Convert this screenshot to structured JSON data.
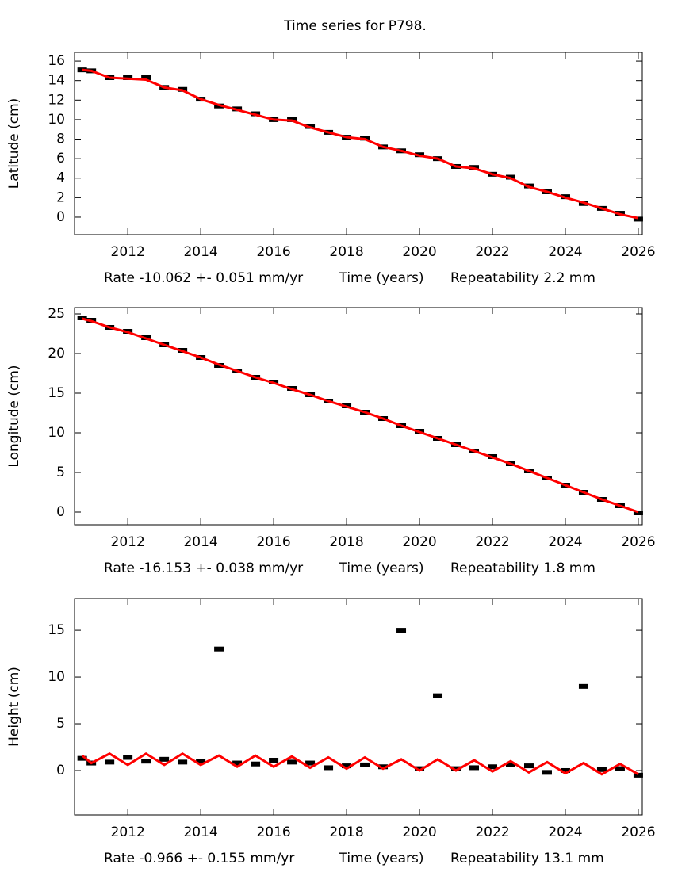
{
  "chart_data": [
    {
      "type": "scatter",
      "title": "Time series for P798.",
      "ylabel": "Latitude (cm)",
      "rate_label": "Rate -10.062 +- 0.051 mm/yr",
      "xlabel": "Time (years)",
      "repeatability_label": "Repeatability 2.2 mm",
      "x": [
        2010.75,
        2011.0,
        2011.5,
        2012.0,
        2012.5,
        2013.0,
        2013.5,
        2014.0,
        2014.5,
        2015.0,
        2015.5,
        2016.0,
        2016.5,
        2017.0,
        2017.5,
        2018.0,
        2018.5,
        2019.0,
        2019.5,
        2020.0,
        2020.5,
        2021.0,
        2021.5,
        2022.0,
        2022.5,
        2023.0,
        2023.5,
        2024.0,
        2024.5,
        2025.0,
        2025.5,
        2026.0
      ],
      "series": [
        {
          "color": "#000000",
          "values": [
            15.1,
            15.0,
            14.3,
            14.3,
            14.3,
            13.3,
            13.1,
            12.1,
            11.4,
            11.1,
            10.6,
            10.0,
            10.0,
            9.3,
            8.7,
            8.2,
            8.1,
            7.2,
            6.8,
            6.4,
            6.0,
            5.2,
            5.1,
            4.4,
            4.1,
            3.2,
            2.6,
            2.1,
            1.4,
            0.9,
            0.4,
            -0.2
          ]
        },
        {
          "color": "#ff0000",
          "values": [
            15.1,
            15.0,
            14.3,
            14.2,
            14.1,
            13.3,
            13.0,
            12.1,
            11.5,
            11.0,
            10.5,
            10.0,
            9.9,
            9.2,
            8.7,
            8.2,
            8.0,
            7.2,
            6.8,
            6.3,
            6.0,
            5.2,
            5.0,
            4.4,
            4.0,
            3.1,
            2.6,
            2.0,
            1.5,
            0.9,
            0.3,
            -0.1
          ]
        }
      ],
      "xlim": [
        2010.54,
        2026.11
      ],
      "xticks": [
        2012,
        2014,
        2016,
        2018,
        2020,
        2022,
        2024,
        2026
      ],
      "ylim": [
        -1.79,
        16.9
      ],
      "yticks": [
        0,
        2,
        4,
        6,
        8,
        10,
        12,
        14,
        16
      ]
    },
    {
      "type": "scatter",
      "ylabel": "Longitude (cm)",
      "rate_label": "Rate -16.153 +- 0.038 mm/yr",
      "xlabel": "Time (years)",
      "repeatability_label": "Repeatability 1.8 mm",
      "x": [
        2010.75,
        2011.0,
        2011.5,
        2012.0,
        2012.5,
        2013.0,
        2013.5,
        2014.0,
        2014.5,
        2015.0,
        2015.5,
        2016.0,
        2016.5,
        2017.0,
        2017.5,
        2018.0,
        2018.5,
        2019.0,
        2019.5,
        2020.0,
        2020.5,
        2021.0,
        2021.5,
        2022.0,
        2022.5,
        2023.0,
        2023.5,
        2024.0,
        2024.5,
        2025.0,
        2025.5,
        2026.0
      ],
      "series": [
        {
          "color": "#000000",
          "values": [
            24.5,
            24.2,
            23.3,
            22.8,
            22.0,
            21.1,
            20.4,
            19.5,
            18.5,
            17.8,
            17.0,
            16.4,
            15.6,
            14.8,
            14.0,
            13.4,
            12.6,
            11.8,
            10.9,
            10.2,
            9.3,
            8.5,
            7.7,
            7.0,
            6.1,
            5.2,
            4.3,
            3.4,
            2.5,
            1.6,
            0.8,
            -0.1
          ]
        },
        {
          "color": "#ff0000",
          "values": [
            24.4,
            24.1,
            23.3,
            22.7,
            21.9,
            21.1,
            20.3,
            19.5,
            18.6,
            17.8,
            17.0,
            16.3,
            15.5,
            14.8,
            14.0,
            13.3,
            12.6,
            11.8,
            10.9,
            10.1,
            9.3,
            8.5,
            7.7,
            6.9,
            6.1,
            5.2,
            4.3,
            3.4,
            2.5,
            1.6,
            0.8,
            0.0
          ]
        }
      ],
      "xlim": [
        2010.54,
        2026.11
      ],
      "xticks": [
        2012,
        2014,
        2016,
        2018,
        2020,
        2022,
        2024,
        2026
      ],
      "ylim": [
        -1.6,
        25.8
      ],
      "yticks": [
        0,
        5,
        10,
        15,
        20,
        25
      ]
    },
    {
      "type": "scatter",
      "ylabel": "Height (cm)",
      "rate_label": "Rate -0.966 +- 0.155 mm/yr",
      "xlabel": "Time (years)",
      "repeatability_label": "Repeatability 13.1 mm",
      "x": [
        2010.75,
        2011.0,
        2011.5,
        2012.0,
        2012.5,
        2013.0,
        2013.5,
        2014.0,
        2014.5,
        2015.0,
        2015.5,
        2016.0,
        2016.5,
        2017.0,
        2017.5,
        2018.0,
        2018.5,
        2019.0,
        2019.5,
        2020.0,
        2020.5,
        2021.0,
        2021.5,
        2022.0,
        2022.5,
        2023.0,
        2023.5,
        2024.0,
        2024.5,
        2025.0,
        2025.5,
        2026.0
      ],
      "series": [
        {
          "color": "#000000",
          "values": [
            1.3,
            0.8,
            0.9,
            1.4,
            1.0,
            1.2,
            0.9,
            1.0,
            13.0,
            0.8,
            0.7,
            1.1,
            0.9,
            0.8,
            0.3,
            0.5,
            0.6,
            0.4,
            15.0,
            0.2,
            8.0,
            0.2,
            0.3,
            0.4,
            0.6,
            0.5,
            -0.2,
            0.0,
            9.0,
            0.1,
            0.2,
            -0.5
          ]
        },
        {
          "color": "#ff0000",
          "values": [
            1.6,
            0.8,
            1.8,
            0.6,
            1.8,
            0.6,
            1.8,
            0.6,
            1.6,
            0.4,
            1.6,
            0.4,
            1.5,
            0.3,
            1.4,
            0.2,
            1.4,
            0.2,
            1.2,
            0.0,
            1.2,
            0.0,
            1.1,
            -0.1,
            1.0,
            -0.2,
            0.9,
            -0.3,
            0.8,
            -0.4,
            0.7,
            -0.4
          ]
        }
      ],
      "xlim": [
        2010.54,
        2026.11
      ],
      "xticks": [
        2012,
        2014,
        2016,
        2018,
        2020,
        2022,
        2024,
        2026
      ],
      "ylim": [
        -4.75,
        18.4
      ],
      "yticks": [
        0,
        5,
        10,
        15
      ]
    }
  ]
}
